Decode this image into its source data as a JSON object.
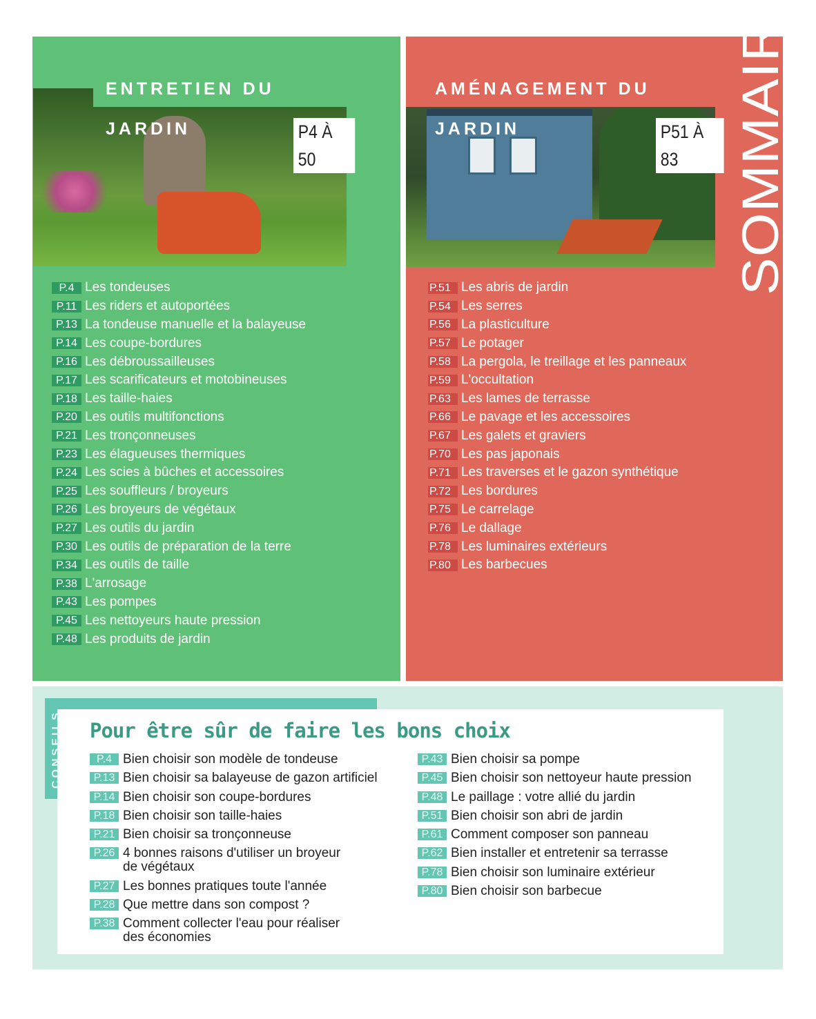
{
  "sommaire": "SOMMAIRE",
  "entretien": {
    "title": "ENTRETIEN DU JARDIN",
    "range": "P4 À 50",
    "color": "#5ec177",
    "items": [
      {
        "page": "P.4",
        "label": "Les tondeuses"
      },
      {
        "page": "P.11",
        "label": "Les riders et autoportées"
      },
      {
        "page": "P.13",
        "label": "La tondeuse manuelle et la balayeuse"
      },
      {
        "page": "P.14",
        "label": "Les coupe-bordures"
      },
      {
        "page": "P.16",
        "label": "Les débroussailleuses"
      },
      {
        "page": "P.17",
        "label": "Les scarificateurs et motobineuses"
      },
      {
        "page": "P.18",
        "label": "Les taille-haies"
      },
      {
        "page": "P.20",
        "label": "Les outils multifonctions"
      },
      {
        "page": "P.21",
        "label": "Les tronçonneuses"
      },
      {
        "page": "P.23",
        "label": "Les élagueuses thermiques"
      },
      {
        "page": "P.24",
        "label": "Les scies à bûches et accessoires"
      },
      {
        "page": "P.25",
        "label": "Les souffleurs / broyeurs"
      },
      {
        "page": "P.26",
        "label": "Les broyeurs de végétaux"
      },
      {
        "page": "P.27",
        "label": "Les outils du jardin"
      },
      {
        "page": "P.30",
        "label": "Les outils de préparation de la terre"
      },
      {
        "page": "P.34",
        "label": "Les outils de taille"
      },
      {
        "page": "P.38",
        "label": "L'arrosage"
      },
      {
        "page": "P.43",
        "label": "Les pompes"
      },
      {
        "page": "P.45",
        "label": "Les nettoyeurs haute pression"
      },
      {
        "page": "P.48",
        "label": "Les produits de jardin"
      }
    ]
  },
  "amenagement": {
    "title": "AMÉNAGEMENT DU JARDIN",
    "range": "P51 À 83",
    "color": "#e0685a",
    "items": [
      {
        "page": "P.51",
        "label": "Les abris de jardin"
      },
      {
        "page": "P.54",
        "label": "Les serres"
      },
      {
        "page": "P.56",
        "label": "La plasticulture"
      },
      {
        "page": "P.57",
        "label": "Le potager"
      },
      {
        "page": "P.58",
        "label": "La pergola, le treillage et les panneaux"
      },
      {
        "page": "P.59",
        "label": "L'occultation"
      },
      {
        "page": "P.63",
        "label": "Les lames de terrasse"
      },
      {
        "page": "P.66",
        "label": "Le pavage et les accessoires"
      },
      {
        "page": "P.67",
        "label": "Les galets et graviers"
      },
      {
        "page": "P.70",
        "label": "Les pas japonais"
      },
      {
        "page": "P.71",
        "label": "Les traverses et le gazon synthétique"
      },
      {
        "page": "P.72",
        "label": "Les bordures"
      },
      {
        "page": "P.75",
        "label": "Le carrelage"
      },
      {
        "page": "P.76",
        "label": "Le dallage"
      },
      {
        "page": "P.78",
        "label": "Les luminaires extérieurs"
      },
      {
        "page": "P.80",
        "label": "Les barbecues"
      }
    ]
  },
  "conseils": {
    "label": "CONSEILS",
    "title": "Pour être sûr de faire les bons choix",
    "color": "#62c6b2",
    "left": [
      {
        "page": "P.4",
        "label": "Bien choisir son modèle de tondeuse"
      },
      {
        "page": "P.13",
        "label": "Bien choisir sa balayeuse de gazon artificiel"
      },
      {
        "page": "P.14",
        "label": "Bien choisir son coupe-bordures"
      },
      {
        "page": "P.18",
        "label": "Bien choisir son taille-haies"
      },
      {
        "page": "P.21",
        "label": "Bien choisir sa tronçonneuse"
      },
      {
        "page": "P.26",
        "label": "4 bonnes raisons d'utiliser un broyeur\nde végétaux"
      },
      {
        "page": "P.27",
        "label": "Les bonnes pratiques toute l'année"
      },
      {
        "page": "P.28",
        "label": "Que mettre dans son compost ?"
      },
      {
        "page": "P.38",
        "label": "Comment collecter l'eau pour réaliser\ndes économies"
      }
    ],
    "right": [
      {
        "page": "P.43",
        "label": "Bien choisir sa pompe"
      },
      {
        "page": "P.45",
        "label": "Bien choisir son nettoyeur haute pression"
      },
      {
        "page": "P.48",
        "label": "Le paillage : votre allié du jardin"
      },
      {
        "page": "P.51",
        "label": "Bien choisir son abri de jardin"
      },
      {
        "page": "P.61",
        "label": "Comment composer son panneau"
      },
      {
        "page": "P.62",
        "label": "Bien installer et entretenir sa terrasse"
      },
      {
        "page": "P.78",
        "label": "Bien choisir son luminaire extérieur"
      },
      {
        "page": "P.80",
        "label": "Bien choisir son barbecue"
      }
    ]
  }
}
